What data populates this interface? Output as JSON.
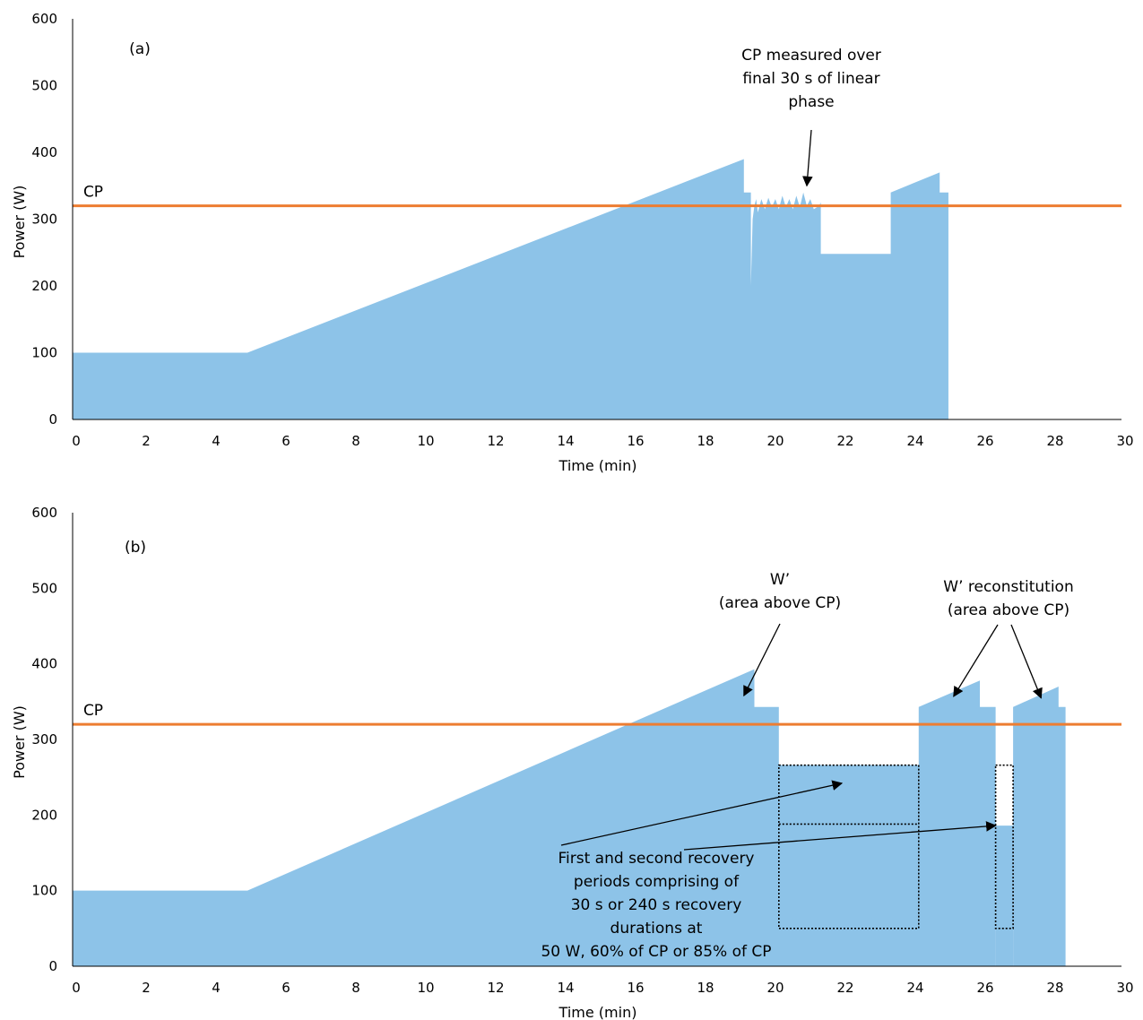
{
  "chart_data": [
    {
      "type": "area",
      "panel_label": "(a)",
      "xlabel": "Time (min)",
      "ylabel": "Power (W)",
      "xlim": [
        0,
        30
      ],
      "ylim": [
        0,
        600
      ],
      "xticks": [
        "0",
        "2",
        "4",
        "6",
        "8",
        "10",
        "12",
        "14",
        "16",
        "18",
        "20",
        "22",
        "24",
        "26",
        "28",
        "30"
      ],
      "yticks": [
        "0",
        "100",
        "200",
        "300",
        "400",
        "500",
        "600"
      ],
      "grid": false,
      "cp": {
        "label": "CP",
        "value": 320,
        "color": "#ED7D31"
      },
      "area_color": "#8DC3E8",
      "series": [
        {
          "x": [
            0,
            5,
            19.2,
            19.2,
            19.4,
            19.4,
            19.45,
            19.5,
            19.55,
            19.6,
            19.7,
            19.8,
            19.9,
            20.0,
            20.1,
            20.2,
            20.3,
            20.4,
            20.5,
            20.6,
            20.7,
            20.8,
            20.9,
            21.0,
            21.1,
            21.2,
            21.35,
            21.4,
            21.4,
            23.4,
            23.4,
            24.8,
            24.8,
            25.05,
            25.05
          ],
          "y": [
            100,
            100,
            390,
            340,
            340,
            200,
            300,
            320,
            330,
            310,
            330,
            315,
            332,
            318,
            330,
            315,
            335,
            318,
            330,
            315,
            335,
            318,
            340,
            320,
            330,
            315,
            320,
            325,
            248,
            248,
            340,
            370,
            340,
            340,
            0
          ]
        }
      ],
      "annotations": [
        {
          "lines": [
            "CP measured over",
            "final 30 s of linear",
            "phase"
          ],
          "arrow_to": [
            21.0,
            350
          ]
        }
      ]
    },
    {
      "type": "area",
      "panel_label": "(b)",
      "xlabel": "Time (min)",
      "ylabel": "Power (W)",
      "xlim": [
        0,
        30
      ],
      "ylim": [
        0,
        600
      ],
      "xticks": [
        "0",
        "2",
        "4",
        "6",
        "8",
        "10",
        "12",
        "14",
        "16",
        "18",
        "20",
        "22",
        "24",
        "26",
        "28",
        "30"
      ],
      "yticks": [
        "0",
        "100",
        "200",
        "300",
        "400",
        "500",
        "600"
      ],
      "grid": false,
      "cp": {
        "label": "CP",
        "value": 320,
        "color": "#ED7D31"
      },
      "area_color": "#8DC3E8",
      "series": [
        {
          "x": [
            0,
            5,
            19.5,
            19.5,
            20.2,
            20.2,
            24.2,
            24.2,
            25.95,
            25.95,
            26.4,
            26.4,
            26.9,
            26.9,
            28.2,
            28.2,
            28.4,
            28.4
          ],
          "y": [
            100,
            100,
            393,
            343,
            343,
            266,
            266,
            343,
            378,
            343,
            343,
            0,
            0,
            343,
            370,
            343,
            343,
            0
          ]
        }
      ],
      "recovery_areas": [
        {
          "x": [
            26.4,
            26.9
          ],
          "y": [
            0,
            186
          ]
        }
      ],
      "dotted_boxes": [
        {
          "x": [
            20.2,
            24.2
          ],
          "y": [
            50,
            266
          ]
        },
        {
          "x": [
            26.4,
            26.9
          ],
          "y": [
            50,
            266
          ]
        }
      ],
      "dotted_levels": [
        {
          "x": [
            20.2,
            24.2
          ],
          "y": 188
        }
      ],
      "annotations": [
        {
          "lines": [
            "W’",
            "(area above CP)"
          ],
          "arrows_to": [
            [
              19.2,
              358
            ]
          ]
        },
        {
          "lines": [
            "W’ reconstitution",
            "(area above CP)"
          ],
          "arrows_to": [
            [
              25.2,
              357
            ],
            [
              27.7,
              355
            ]
          ]
        },
        {
          "lines": [
            "First and second recovery",
            "periods comprising of",
            "30 s or 240 s recovery",
            "durations at",
            "50 W, 60% of CP or 85% of CP"
          ],
          "arrows_to": [
            [
              22.0,
              242
            ],
            [
              26.4,
              186
            ]
          ]
        }
      ]
    }
  ]
}
